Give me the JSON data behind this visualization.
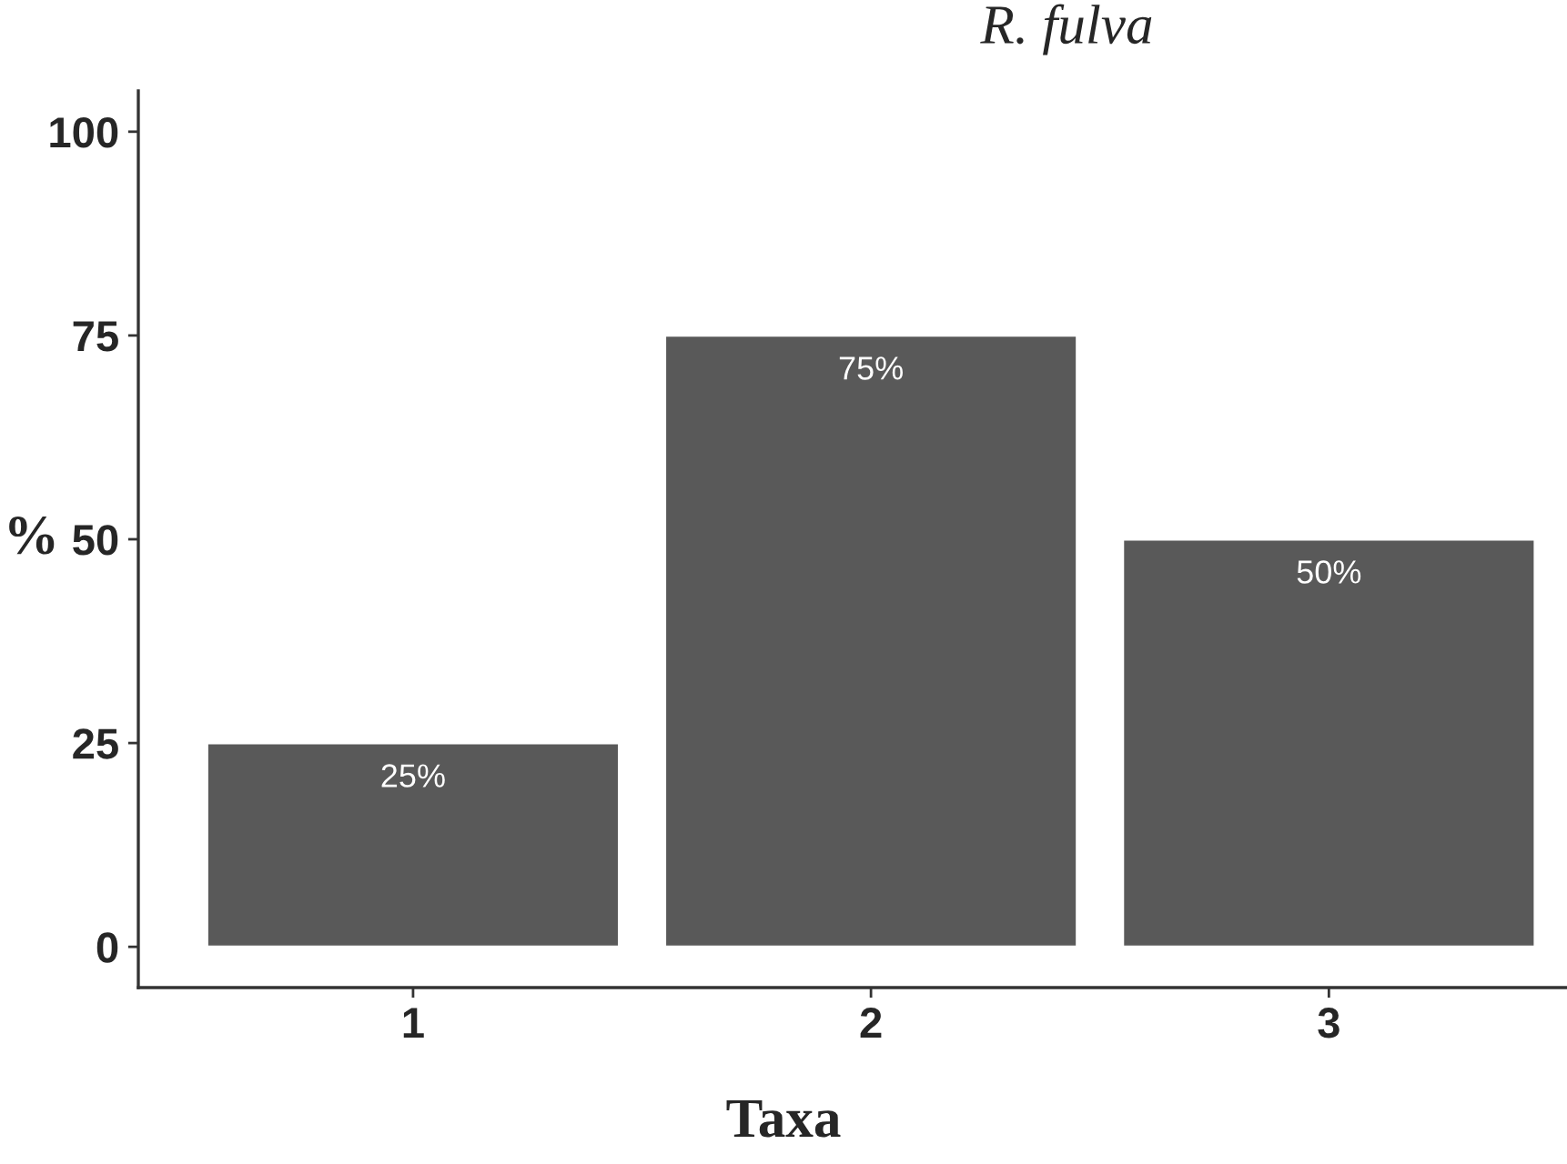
{
  "chart_data": {
    "type": "bar",
    "title": "R. fulva",
    "xlabel": "Taxa",
    "ylabel": "%",
    "categories": [
      "1",
      "2",
      "3"
    ],
    "values": [
      25,
      75,
      50
    ],
    "color": "#595959",
    "value_labels": [
      "25%",
      "75%",
      "50%"
    ],
    "ylim": [
      -5,
      105
    ],
    "yticks": [
      0,
      25,
      50,
      75,
      100
    ],
    "grid": false,
    "legend": false
  }
}
